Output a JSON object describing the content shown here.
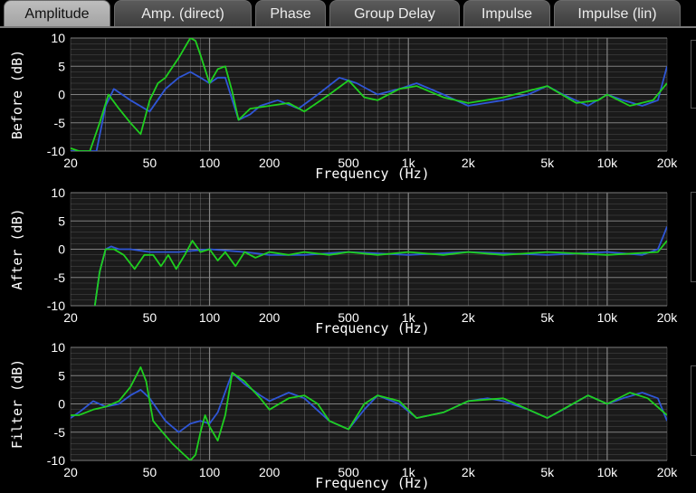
{
  "tabs": [
    {
      "label": "Amplitude",
      "active": true
    },
    {
      "label": "Amp. (direct)",
      "active": false
    },
    {
      "label": "Phase",
      "active": false
    },
    {
      "label": "Group Delay",
      "active": false
    },
    {
      "label": "Impulse",
      "active": false
    },
    {
      "label": "Impulse (lin)",
      "active": false
    }
  ],
  "colors": {
    "background": "#000000",
    "plot_background": "#1a1a1a",
    "grid": "#8a8a8a",
    "series_blue": "#2f56d6",
    "series_green": "#1fcf1f",
    "text": "#ffffff"
  },
  "chart_data": [
    {
      "type": "line",
      "ylabel": "Before (dB)",
      "xlabel": "Frequency (Hz)",
      "xscale": "log",
      "xlim": [
        20,
        20000
      ],
      "ylim": [
        -10,
        10
      ],
      "xticks": [
        "20",
        "50",
        "100",
        "200",
        "500",
        "1k",
        "2k",
        "5k",
        "10k",
        "20k"
      ],
      "yticks": [
        "10",
        "5",
        "0",
        "-5",
        "-10"
      ],
      "grid": true,
      "series": [
        {
          "color": "blue",
          "x": [
            20,
            22,
            25,
            27,
            30,
            33,
            40,
            50,
            60,
            70,
            80,
            90,
            100,
            110,
            120,
            140,
            160,
            180,
            220,
            280,
            350,
            450,
            550,
            700,
            900,
            1100,
            1500,
            2000,
            3000,
            4000,
            5000,
            6000,
            8000,
            10000,
            12000,
            15000,
            18000,
            20000
          ],
          "y": [
            -10,
            -10,
            -10,
            -10,
            -2,
            1,
            -1,
            -3,
            1,
            3,
            4,
            3,
            2,
            3,
            3,
            -4.5,
            -3.5,
            -2,
            -1,
            -2.5,
            0,
            3,
            2,
            0,
            1,
            2,
            0,
            -2,
            -1,
            0,
            1.5,
            0,
            -2,
            0,
            -1,
            -2,
            -1,
            5
          ]
        },
        {
          "color": "green",
          "x": [
            20,
            22,
            25,
            28,
            31,
            35,
            40,
            45,
            50,
            55,
            60,
            70,
            80,
            85,
            90,
            100,
            110,
            120,
            130,
            140,
            160,
            200,
            250,
            300,
            400,
            500,
            600,
            700,
            900,
            1100,
            1500,
            2000,
            3000,
            5000,
            7000,
            9000,
            10000,
            13000,
            17000,
            20000
          ],
          "y": [
            -9.5,
            -10,
            -10,
            -5,
            0,
            -2.5,
            -5,
            -7,
            -1,
            2,
            3,
            6.5,
            10,
            9.5,
            7,
            2,
            4.5,
            5,
            0.5,
            -4.5,
            -2.5,
            -2,
            -1.5,
            -3,
            0,
            2.5,
            -0.5,
            -1,
            1,
            1.5,
            -0.5,
            -1.5,
            -0.5,
            1.5,
            -1.5,
            -1,
            0,
            -2,
            -1,
            2
          ]
        }
      ]
    },
    {
      "type": "line",
      "ylabel": "After (dB)",
      "xlabel": "Frequency (Hz)",
      "xscale": "log",
      "xlim": [
        20,
        20000
      ],
      "ylim": [
        -10,
        10
      ],
      "xticks": [
        "20",
        "50",
        "100",
        "200",
        "500",
        "1k",
        "2k",
        "5k",
        "10k",
        "20k"
      ],
      "yticks": [
        "10",
        "5",
        "0",
        "-5",
        "-10"
      ],
      "grid": true,
      "series": [
        {
          "color": "blue",
          "x": [
            26.5,
            28,
            30,
            32,
            35,
            40,
            50,
            70,
            100,
            150,
            200,
            300,
            500,
            1000,
            2000,
            5000,
            10000,
            15000,
            18000,
            19000,
            20000
          ],
          "y": [
            -10,
            -4,
            0,
            0.5,
            0,
            0,
            -0.5,
            -0.5,
            0,
            -0.5,
            -1,
            -1,
            -0.5,
            -1,
            -0.5,
            -1,
            -0.5,
            -1,
            0,
            2,
            4
          ]
        },
        {
          "color": "green",
          "x": [
            26.5,
            28,
            30,
            33,
            37,
            42,
            47,
            52,
            57,
            62,
            68,
            75,
            82,
            90,
            100,
            110,
            120,
            135,
            150,
            170,
            200,
            250,
            300,
            400,
            500,
            700,
            1000,
            1500,
            2000,
            3000,
            5000,
            10000,
            18000,
            20000
          ],
          "y": [
            -10,
            -4,
            0,
            0,
            -1,
            -3.5,
            -1,
            -1,
            -3,
            -1,
            -3.5,
            -1,
            1.5,
            -0.5,
            0,
            -2,
            -0.5,
            -3,
            -0.5,
            -1.5,
            -0.5,
            -1,
            -0.5,
            -1,
            -0.5,
            -1,
            -0.5,
            -1,
            -0.5,
            -1,
            -0.5,
            -1,
            -0.5,
            1.5
          ]
        }
      ]
    },
    {
      "type": "line",
      "ylabel": "Filter (dB)",
      "xlabel": "Frequency (Hz)",
      "xscale": "log",
      "xlim": [
        20,
        20000
      ],
      "ylim": [
        -10,
        10
      ],
      "xticks": [
        "20",
        "50",
        "100",
        "200",
        "500",
        "1k",
        "2k",
        "5k",
        "10k",
        "20k"
      ],
      "yticks": [
        "10",
        "5",
        "0",
        "-5",
        "-10"
      ],
      "grid": true,
      "series": [
        {
          "color": "blue",
          "x": [
            20,
            22,
            26,
            30,
            35,
            40,
            45,
            50,
            60,
            70,
            80,
            90,
            100,
            110,
            130,
            150,
            180,
            200,
            250,
            300,
            400,
            500,
            600,
            700,
            900,
            1100,
            1500,
            2000,
            2500,
            3000,
            4000,
            5000,
            6000,
            8000,
            10000,
            12000,
            15000,
            18000,
            20000
          ],
          "y": [
            -2.5,
            -1.5,
            0.5,
            -0.5,
            0,
            1.5,
            2.5,
            1,
            -3,
            -5,
            -3.5,
            -3,
            -3.5,
            -1.5,
            5.5,
            3.5,
            1.5,
            0.5,
            2,
            1,
            -3,
            -4.5,
            -1,
            1.5,
            0,
            -2.5,
            -1.5,
            0.5,
            1,
            0.5,
            -1,
            -2.5,
            -1,
            1.5,
            0,
            1,
            2,
            1,
            -3
          ]
        },
        {
          "color": "green",
          "x": [
            20,
            22,
            26,
            30,
            35,
            40,
            45,
            48,
            52,
            58,
            65,
            72,
            80,
            85,
            90,
            95,
            100,
            110,
            120,
            130,
            150,
            180,
            200,
            250,
            300,
            350,
            400,
            500,
            600,
            700,
            900,
            1100,
            1500,
            2000,
            3000,
            5000,
            8000,
            10000,
            13000,
            16000,
            20000
          ],
          "y": [
            -2,
            -2,
            -1,
            -0.5,
            0.5,
            3,
            6.5,
            4,
            -3,
            -5,
            -7,
            -8.5,
            -10,
            -9,
            -5,
            -2,
            -4,
            -6.5,
            -2,
            5.5,
            4,
            1,
            -1,
            1,
            1.5,
            0,
            -3,
            -4.5,
            0,
            1.5,
            0.5,
            -2.5,
            -1.5,
            0.5,
            1,
            -2.5,
            1.5,
            0,
            2,
            1,
            -2
          ]
        }
      ]
    }
  ]
}
